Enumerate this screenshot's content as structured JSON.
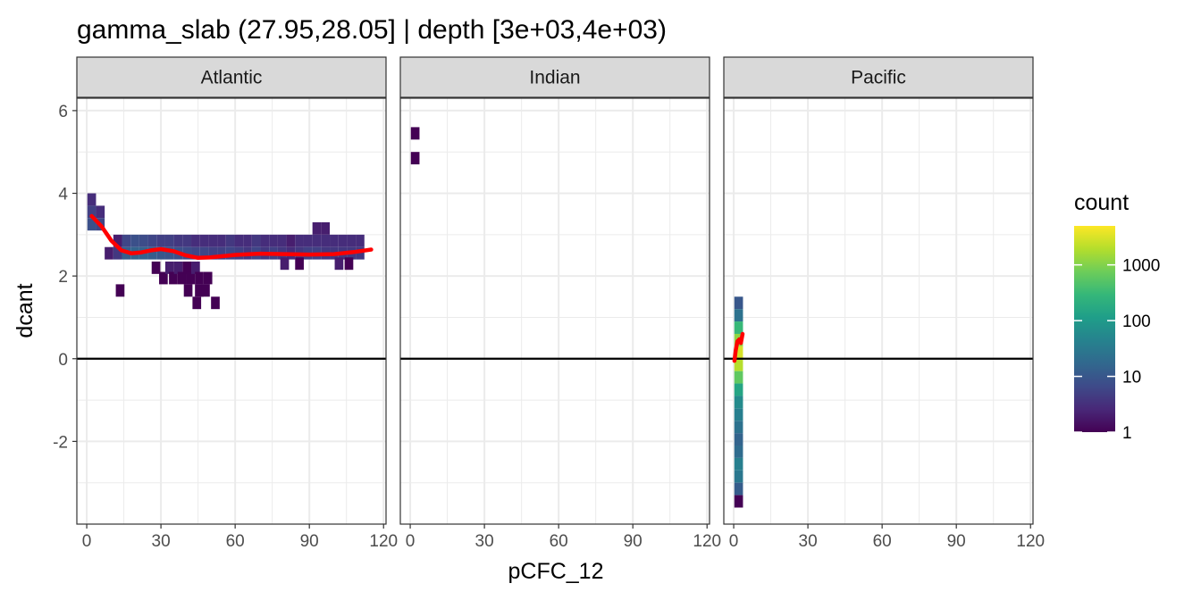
{
  "chart_data": {
    "type": "heatmap",
    "title": "gamma_slab (27.95,28.05] | depth [3e+03,4e+03)",
    "xlabel": "pCFC_12",
    "ylabel": "dcant",
    "xlim": [
      -4,
      121
    ],
    "ylim": [
      -4,
      6.3
    ],
    "x_ticks": [
      "0",
      "30",
      "60",
      "90",
      "120"
    ],
    "y_ticks": [
      "-2",
      "0",
      "2",
      "4",
      "6"
    ],
    "grid": true,
    "hline": 0,
    "panels": [
      {
        "name": "Atlantic",
        "bins": [
          {
            "x": 2,
            "y": 3.85,
            "n": 3
          },
          {
            "x": 2,
            "y": 3.55,
            "n": 5
          },
          {
            "x": 2,
            "y": 3.25,
            "n": 8
          },
          {
            "x": 5.5,
            "y": 3.55,
            "n": 3
          },
          {
            "x": 5.5,
            "y": 3.25,
            "n": 6
          },
          {
            "x": 9,
            "y": 2.55,
            "n": 2
          },
          {
            "x": 12.5,
            "y": 2.85,
            "n": 2
          },
          {
            "x": 12.5,
            "y": 2.55,
            "n": 4
          },
          {
            "x": 13.5,
            "y": 1.65,
            "n": 1
          },
          {
            "x": 16,
            "y": 2.85,
            "n": 6
          },
          {
            "x": 16,
            "y": 2.55,
            "n": 12
          },
          {
            "x": 19.5,
            "y": 2.85,
            "n": 8
          },
          {
            "x": 19.5,
            "y": 2.55,
            "n": 15
          },
          {
            "x": 23,
            "y": 2.85,
            "n": 7
          },
          {
            "x": 23,
            "y": 2.55,
            "n": 14
          },
          {
            "x": 26.5,
            "y": 2.85,
            "n": 6
          },
          {
            "x": 26.5,
            "y": 2.55,
            "n": 12
          },
          {
            "x": 28,
            "y": 2.2,
            "n": 1
          },
          {
            "x": 30,
            "y": 2.85,
            "n": 5
          },
          {
            "x": 30,
            "y": 2.55,
            "n": 10
          },
          {
            "x": 31,
            "y": 1.95,
            "n": 1
          },
          {
            "x": 33.5,
            "y": 2.85,
            "n": 5
          },
          {
            "x": 33.5,
            "y": 2.55,
            "n": 9
          },
          {
            "x": 33.5,
            "y": 2.2,
            "n": 2
          },
          {
            "x": 35,
            "y": 1.95,
            "n": 1
          },
          {
            "x": 37,
            "y": 2.85,
            "n": 4
          },
          {
            "x": 37,
            "y": 2.55,
            "n": 8
          },
          {
            "x": 37,
            "y": 2.2,
            "n": 2
          },
          {
            "x": 38.5,
            "y": 1.95,
            "n": 1
          },
          {
            "x": 40.5,
            "y": 2.85,
            "n": 4
          },
          {
            "x": 40.5,
            "y": 2.55,
            "n": 7
          },
          {
            "x": 40.5,
            "y": 2.2,
            "n": 1
          },
          {
            "x": 42,
            "y": 1.95,
            "n": 1
          },
          {
            "x": 41,
            "y": 1.65,
            "n": 1
          },
          {
            "x": 44,
            "y": 2.85,
            "n": 3
          },
          {
            "x": 44,
            "y": 2.55,
            "n": 6
          },
          {
            "x": 44,
            "y": 2.2,
            "n": 2
          },
          {
            "x": 45.5,
            "y": 1.95,
            "n": 1
          },
          {
            "x": 45.5,
            "y": 1.65,
            "n": 1
          },
          {
            "x": 44.5,
            "y": 1.35,
            "n": 1
          },
          {
            "x": 47.5,
            "y": 2.85,
            "n": 3
          },
          {
            "x": 47.5,
            "y": 2.55,
            "n": 6
          },
          {
            "x": 49,
            "y": 1.95,
            "n": 1
          },
          {
            "x": 48,
            "y": 1.65,
            "n": 1
          },
          {
            "x": 51,
            "y": 2.85,
            "n": 3
          },
          {
            "x": 51,
            "y": 2.55,
            "n": 5
          },
          {
            "x": 52,
            "y": 1.35,
            "n": 1
          },
          {
            "x": 54.5,
            "y": 2.85,
            "n": 3
          },
          {
            "x": 54.5,
            "y": 2.55,
            "n": 5
          },
          {
            "x": 58,
            "y": 2.85,
            "n": 4
          },
          {
            "x": 58,
            "y": 2.55,
            "n": 6
          },
          {
            "x": 61.5,
            "y": 2.85,
            "n": 3
          },
          {
            "x": 61.5,
            "y": 2.55,
            "n": 5
          },
          {
            "x": 65,
            "y": 2.85,
            "n": 3
          },
          {
            "x": 65,
            "y": 2.55,
            "n": 4
          },
          {
            "x": 68.5,
            "y": 2.85,
            "n": 4
          },
          {
            "x": 68.5,
            "y": 2.55,
            "n": 6
          },
          {
            "x": 72,
            "y": 2.85,
            "n": 3
          },
          {
            "x": 72,
            "y": 2.55,
            "n": 4
          },
          {
            "x": 75.5,
            "y": 2.85,
            "n": 3
          },
          {
            "x": 75.5,
            "y": 2.55,
            "n": 5
          },
          {
            "x": 79,
            "y": 2.85,
            "n": 3
          },
          {
            "x": 79,
            "y": 2.55,
            "n": 4
          },
          {
            "x": 82.5,
            "y": 2.85,
            "n": 2
          },
          {
            "x": 82.5,
            "y": 2.55,
            "n": 3
          },
          {
            "x": 86,
            "y": 2.85,
            "n": 3
          },
          {
            "x": 86,
            "y": 2.55,
            "n": 4
          },
          {
            "x": 86,
            "y": 2.3,
            "n": 1
          },
          {
            "x": 89.5,
            "y": 2.85,
            "n": 3
          },
          {
            "x": 89.5,
            "y": 2.55,
            "n": 5
          },
          {
            "x": 93,
            "y": 2.85,
            "n": 3
          },
          {
            "x": 93,
            "y": 2.55,
            "n": 5
          },
          {
            "x": 93,
            "y": 3.15,
            "n": 2
          },
          {
            "x": 96.5,
            "y": 2.85,
            "n": 3
          },
          {
            "x": 96.5,
            "y": 2.55,
            "n": 4
          },
          {
            "x": 96.5,
            "y": 3.15,
            "n": 2
          },
          {
            "x": 100,
            "y": 2.85,
            "n": 3
          },
          {
            "x": 100,
            "y": 2.55,
            "n": 4
          },
          {
            "x": 103.5,
            "y": 2.85,
            "n": 3
          },
          {
            "x": 103.5,
            "y": 2.55,
            "n": 4
          },
          {
            "x": 107,
            "y": 2.85,
            "n": 3
          },
          {
            "x": 107,
            "y": 2.55,
            "n": 4
          },
          {
            "x": 110.5,
            "y": 2.85,
            "n": 3
          },
          {
            "x": 110.5,
            "y": 2.55,
            "n": 4
          },
          {
            "x": 106,
            "y": 2.3,
            "n": 1
          },
          {
            "x": 102,
            "y": 2.3,
            "n": 2
          },
          {
            "x": 80,
            "y": 2.3,
            "n": 2
          }
        ],
        "smooth": [
          {
            "x": 2,
            "y": 3.45
          },
          {
            "x": 6,
            "y": 3.2
          },
          {
            "x": 10,
            "y": 2.85
          },
          {
            "x": 14,
            "y": 2.62
          },
          {
            "x": 18,
            "y": 2.55
          },
          {
            "x": 22,
            "y": 2.57
          },
          {
            "x": 26,
            "y": 2.62
          },
          {
            "x": 30,
            "y": 2.65
          },
          {
            "x": 35,
            "y": 2.6
          },
          {
            "x": 40,
            "y": 2.5
          },
          {
            "x": 45,
            "y": 2.44
          },
          {
            "x": 50,
            "y": 2.45
          },
          {
            "x": 55,
            "y": 2.48
          },
          {
            "x": 60,
            "y": 2.51
          },
          {
            "x": 70,
            "y": 2.54
          },
          {
            "x": 80,
            "y": 2.53
          },
          {
            "x": 90,
            "y": 2.52
          },
          {
            "x": 100,
            "y": 2.53
          },
          {
            "x": 108,
            "y": 2.58
          },
          {
            "x": 115,
            "y": 2.64
          }
        ]
      },
      {
        "name": "Indian",
        "bins": [
          {
            "x": 2,
            "y": 5.45,
            "n": 1
          },
          {
            "x": 2,
            "y": 4.85,
            "n": 1
          }
        ],
        "smooth": []
      },
      {
        "name": "Pacific",
        "bins": [
          {
            "x": 2,
            "y": 1.35,
            "n": 10
          },
          {
            "x": 2,
            "y": 1.05,
            "n": 25
          },
          {
            "x": 2,
            "y": 0.75,
            "n": 300
          },
          {
            "x": 2,
            "y": 0.45,
            "n": 1200
          },
          {
            "x": 2,
            "y": 0.15,
            "n": 3000
          },
          {
            "x": 2,
            "y": -0.15,
            "n": 2000
          },
          {
            "x": 2,
            "y": -0.45,
            "n": 600
          },
          {
            "x": 2,
            "y": -0.75,
            "n": 150
          },
          {
            "x": 2,
            "y": -1.05,
            "n": 60
          },
          {
            "x": 2,
            "y": -1.35,
            "n": 40
          },
          {
            "x": 2,
            "y": -1.65,
            "n": 25
          },
          {
            "x": 2,
            "y": -1.95,
            "n": 15
          },
          {
            "x": 2,
            "y": -2.25,
            "n": 20
          },
          {
            "x": 2,
            "y": -2.55,
            "n": 40
          },
          {
            "x": 2,
            "y": -2.85,
            "n": 30
          },
          {
            "x": 2,
            "y": -3.15,
            "n": 12
          },
          {
            "x": 2,
            "y": -3.45,
            "n": 1
          }
        ],
        "smooth": [
          {
            "x": 0.3,
            "y": -0.05
          },
          {
            "x": 0.8,
            "y": 0.2
          },
          {
            "x": 1.5,
            "y": 0.42
          },
          {
            "x": 2.3,
            "y": 0.47
          },
          {
            "x": 2.9,
            "y": 0.38
          },
          {
            "x": 3.6,
            "y": 0.6
          }
        ]
      }
    ],
    "legend": {
      "title": "count",
      "placement": "right",
      "labels": [
        "1",
        "10",
        "100",
        "1000"
      ],
      "values": [
        1,
        10,
        100,
        1000
      ],
      "max": 5000,
      "colors": [
        "#440154",
        "#482878",
        "#3E4A89",
        "#31688E",
        "#26828E",
        "#1F9E89",
        "#35B779",
        "#6DCD59",
        "#B4DE2C",
        "#FDE725"
      ]
    },
    "colors": {
      "smooth": "#FF0000",
      "strip": "#D9D9D9",
      "grid": "#EBEBEB",
      "border": "#333333"
    }
  }
}
